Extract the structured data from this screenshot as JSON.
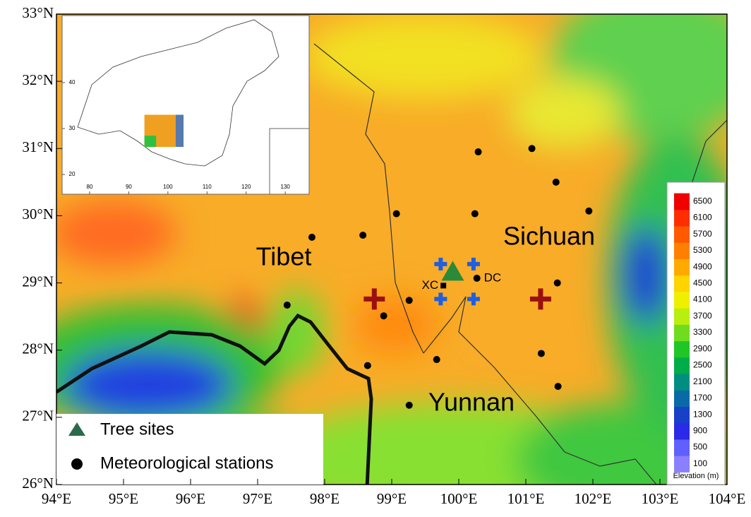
{
  "map": {
    "xlim": [
      94,
      104
    ],
    "ylim": [
      26,
      33
    ],
    "xticks": [
      {
        "value": 94,
        "label": "94°E"
      },
      {
        "value": 95,
        "label": "95°E"
      },
      {
        "value": 96,
        "label": "96°E"
      },
      {
        "value": 97,
        "label": "97°E"
      },
      {
        "value": 98,
        "label": "98°E"
      },
      {
        "value": 99,
        "label": "99°E"
      },
      {
        "value": 100,
        "label": "100°E"
      },
      {
        "value": 101,
        "label": "101°E"
      },
      {
        "value": 102,
        "label": "102°E"
      },
      {
        "value": 103,
        "label": "103°E"
      },
      {
        "value": 104,
        "label": "104°E"
      }
    ],
    "yticks": [
      {
        "value": 26,
        "label": "26°N"
      },
      {
        "value": 27,
        "label": "27°N"
      },
      {
        "value": 28,
        "label": "28°N"
      },
      {
        "value": 29,
        "label": "29°N"
      },
      {
        "value": 30,
        "label": "30°N"
      },
      {
        "value": 31,
        "label": "31°N"
      },
      {
        "value": 32,
        "label": "32°N"
      },
      {
        "value": 33,
        "label": "33°N"
      }
    ],
    "regions": [
      "Tibet",
      "Sichuan",
      "Yunnan"
    ],
    "stations": {
      "lon": [
        100.29,
        101.09,
        101.45,
        101.94,
        100.24,
        99.07,
        98.57,
        97.81,
        101.47,
        100.27,
        97.44,
        98.88,
        99.26,
        99.67,
        101.23,
        101.48,
        98.64,
        99.26
      ],
      "lat": [
        30.95,
        31.0,
        30.5,
        30.07,
        30.03,
        30.03,
        29.71,
        29.68,
        29.0,
        29.07,
        28.67,
        28.51,
        28.74,
        27.86,
        27.95,
        27.46,
        27.77,
        27.18
      ]
    },
    "station_label": "DC",
    "tree_site": {
      "lon": 99.91,
      "lat": 29.17
    },
    "xc": {
      "label": "XC",
      "lon": 99.77,
      "lat": 28.96
    },
    "blue_crosses": {
      "lon": [
        99.73,
        100.22,
        99.73,
        100.22
      ],
      "lat": [
        29.28,
        29.28,
        28.76,
        28.76
      ]
    },
    "red_crosses": {
      "lon": [
        98.74,
        101.22
      ],
      "lat": [
        28.76,
        28.76
      ]
    },
    "legend": [
      "Tree sites",
      "Meteorological stations"
    ],
    "colorbar": {
      "label": "Elevation (m)",
      "range": [
        -300,
        6900
      ],
      "ticks": [
        100,
        500,
        900,
        1300,
        1700,
        2100,
        2500,
        2900,
        3300,
        3700,
        4100,
        4500,
        4900,
        5300,
        5700,
        6100,
        6500
      ],
      "colors": [
        "#8a80ff",
        "#6060ff",
        "#2a2ae8",
        "#1840c8",
        "#0a6aa8",
        "#008e80",
        "#00ad48",
        "#20c628",
        "#70dc20",
        "#b8ee10",
        "#eef000",
        "#ffd400",
        "#ffaa00",
        "#ff8000",
        "#ff5a00",
        "#ff2e00",
        "#f00000"
      ]
    },
    "inset": {
      "xlim": [
        72.97,
        136.1
      ],
      "ylim": [
        15.7,
        54.6
      ],
      "xticks": [
        80,
        90,
        100,
        110,
        120,
        130
      ],
      "yticks": [
        20,
        30,
        40
      ]
    }
  }
}
